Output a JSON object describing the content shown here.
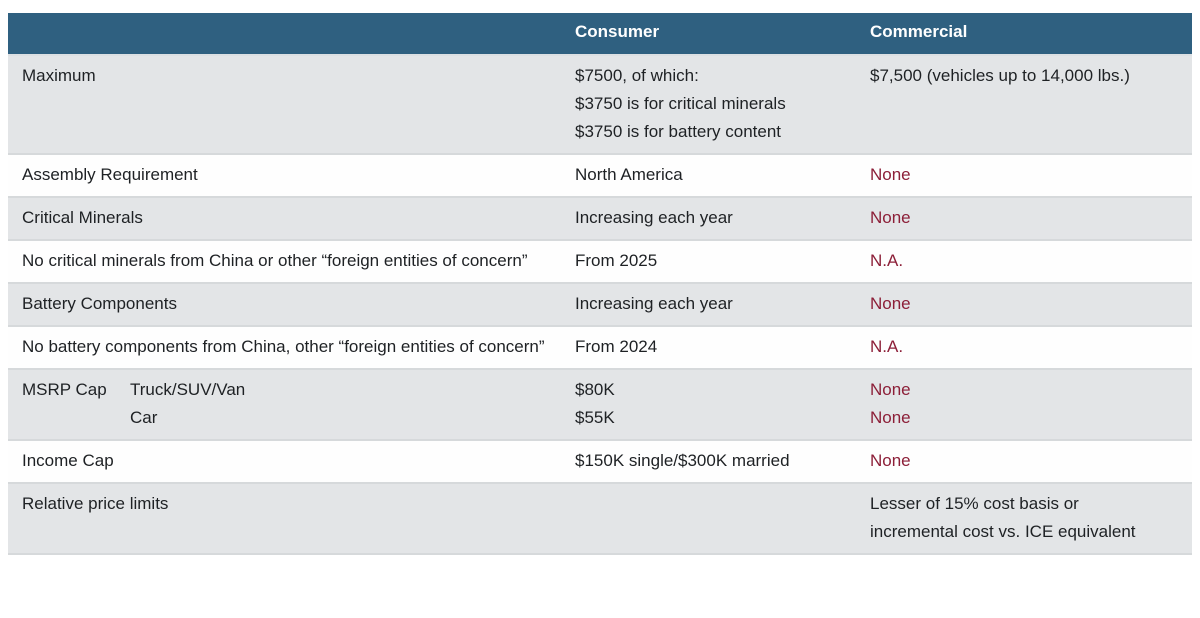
{
  "colors": {
    "header_bg": "#2F6080",
    "header_text": "#FFFFFF",
    "row_gray": "#E3E5E7",
    "row_white": "#FEFEFE",
    "text": "#1E2124",
    "accent_red": "#8C1F38",
    "border": "#D6D9DB"
  },
  "table": {
    "columns": [
      "Consumer",
      "Commercial"
    ],
    "rows": [
      {
        "label": "Maximum",
        "consumer": [
          "$7500, of which:",
          "$3750 is for critical minerals",
          "$3750 is for battery content"
        ],
        "commercial": [
          "$7,500 (vehicles up to 14,000 lbs.)"
        ]
      },
      {
        "label": "Assembly Requirement",
        "consumer": [
          "North America"
        ],
        "commercial": [
          "None"
        ]
      },
      {
        "label": "Critical Minerals",
        "consumer": [
          "Increasing each year"
        ],
        "commercial": [
          "None"
        ]
      },
      {
        "label": "No critical minerals from China or other “foreign entities of concern”",
        "consumer": [
          "From 2025"
        ],
        "commercial": [
          "N.A."
        ]
      },
      {
        "label": "Battery Components",
        "consumer": [
          "Increasing each year"
        ],
        "commercial": [
          "None"
        ]
      },
      {
        "label": "No battery components from China, other “foreign entities of concern”",
        "consumer": [
          "From 2024"
        ],
        "commercial": [
          "N.A."
        ]
      },
      {
        "label": "MSRP Cap",
        "sublabels": [
          "Truck/SUV/Van",
          "Car"
        ],
        "consumer": [
          "$80K",
          "$55K"
        ],
        "commercial": [
          "None",
          "None"
        ]
      },
      {
        "label": "Income Cap",
        "consumer": [
          "$150K single/$300K married"
        ],
        "commercial": [
          "None"
        ]
      },
      {
        "label": "Relative price limits",
        "consumer": [],
        "commercial": [
          "Lesser of 15% cost basis or",
          "incremental cost vs. ICE equivalent"
        ]
      }
    ]
  }
}
